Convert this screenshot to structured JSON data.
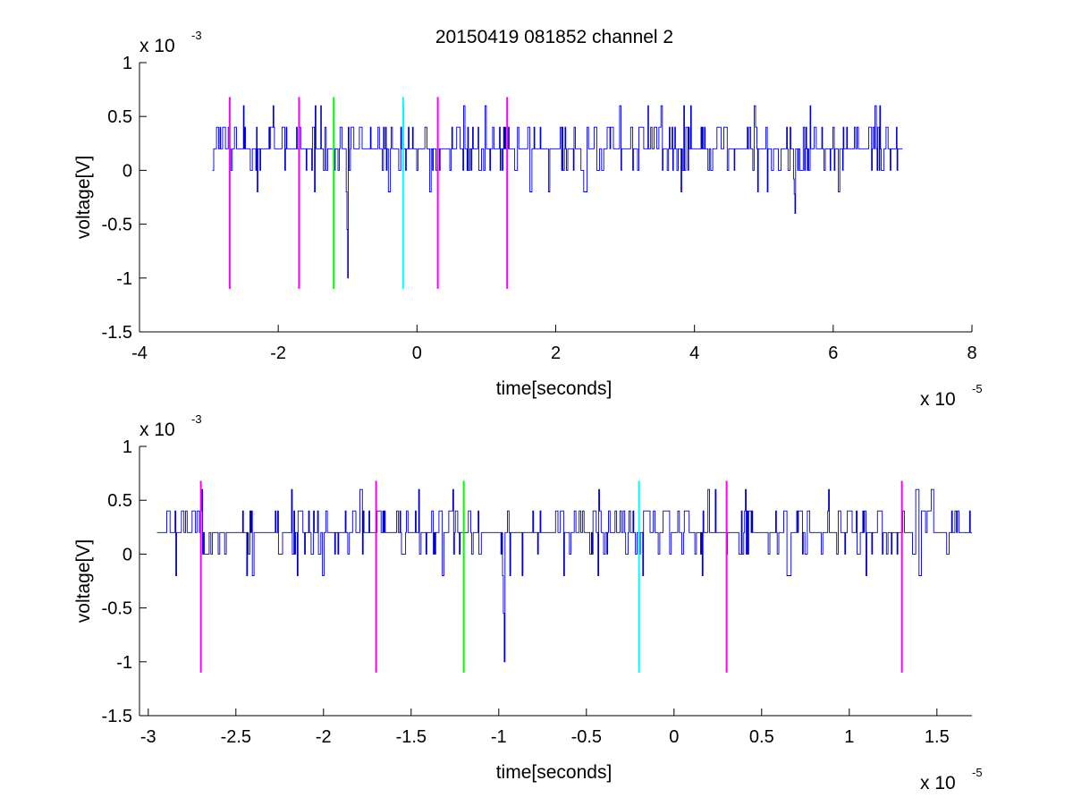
{
  "figure": {
    "title": "20150419 081852 channel 2"
  },
  "colors": {
    "trace": "#0000cc",
    "marker_magenta": "#ff00ff",
    "marker_green": "#00ff00",
    "marker_cyan": "#00ffff",
    "axis": "#000000",
    "background": "#ffffff"
  },
  "chart_data": [
    {
      "type": "line",
      "title": "20150419 081852 channel 2",
      "xlabel": "time[seconds]",
      "ylabel": "voltage[V]",
      "x_multiplier": {
        "base": "x 10",
        "exp": "-5"
      },
      "y_multiplier": {
        "base": "x 10",
        "exp": "-3"
      },
      "xlim": [
        -4,
        8
      ],
      "ylim": [
        -1.5,
        1
      ],
      "xticks": [
        -4,
        -2,
        0,
        2,
        4,
        6,
        8
      ],
      "xtick_labels": [
        "-4",
        "-2",
        "0",
        "2",
        "4",
        "6",
        "8"
      ],
      "yticks": [
        -1.5,
        -1,
        -0.5,
        0,
        0.5,
        1
      ],
      "ytick_labels": [
        "-1.5",
        "-1",
        "-0.5",
        "0",
        "0.5",
        "1"
      ],
      "grid": false,
      "series": [
        {
          "style": "noise",
          "x_range": [
            -2.95,
            7.0
          ],
          "baseline": 0.2,
          "spike_events": [
            {
              "x": -1.0,
              "y": -1.0
            },
            {
              "x": 5.45,
              "y": -0.4
            }
          ]
        }
      ],
      "markers": [
        {
          "x": -2.7,
          "color": "marker_magenta",
          "ymin": -1.1,
          "ymax": 0.68
        },
        {
          "x": -1.7,
          "color": "marker_magenta",
          "ymin": -1.1,
          "ymax": 0.68
        },
        {
          "x": -1.2,
          "color": "marker_green",
          "ymin": -1.1,
          "ymax": 0.68
        },
        {
          "x": -0.2,
          "color": "marker_cyan",
          "ymin": -1.1,
          "ymax": 0.68
        },
        {
          "x": 0.3,
          "color": "marker_magenta",
          "ymin": -1.1,
          "ymax": 0.68
        },
        {
          "x": 1.3,
          "color": "marker_magenta",
          "ymin": -1.1,
          "ymax": 0.68
        }
      ]
    },
    {
      "type": "line",
      "xlabel": "time[seconds]",
      "ylabel": "voltage[V]",
      "x_multiplier": {
        "base": "x 10",
        "exp": "-5"
      },
      "y_multiplier": {
        "base": "x 10",
        "exp": "-3"
      },
      "xlim": [
        -3.05,
        1.7
      ],
      "ylim": [
        -1.5,
        1
      ],
      "xticks": [
        -3,
        -2.5,
        -2,
        -1.5,
        -1,
        -0.5,
        0,
        0.5,
        1,
        1.5
      ],
      "xtick_labels": [
        "-3",
        "-2.5",
        "-2",
        "-1.5",
        "-1",
        "-0.5",
        "0",
        "0.5",
        "1",
        "1.5"
      ],
      "yticks": [
        -1.5,
        -1,
        -0.5,
        0,
        0.5,
        1
      ],
      "ytick_labels": [
        "-1.5",
        "-1",
        "-0.5",
        "0",
        "0.5",
        "1"
      ],
      "grid": false,
      "series": [
        {
          "style": "noise",
          "x_range": [
            -2.95,
            1.7
          ],
          "baseline": 0.2,
          "spike_events": [
            {
              "x": -0.97,
              "y": -1.0
            }
          ]
        }
      ],
      "markers": [
        {
          "x": -2.7,
          "color": "marker_magenta",
          "ymin": -1.1,
          "ymax": 0.68
        },
        {
          "x": -1.7,
          "color": "marker_magenta",
          "ymin": -1.1,
          "ymax": 0.68
        },
        {
          "x": -1.2,
          "color": "marker_green",
          "ymin": -1.1,
          "ymax": 0.68
        },
        {
          "x": -0.2,
          "color": "marker_cyan",
          "ymin": -1.1,
          "ymax": 0.68
        },
        {
          "x": 0.3,
          "color": "marker_magenta",
          "ymin": -1.1,
          "ymax": 0.68
        },
        {
          "x": 1.3,
          "color": "marker_magenta",
          "ymin": -1.1,
          "ymax": 0.68
        }
      ]
    }
  ]
}
